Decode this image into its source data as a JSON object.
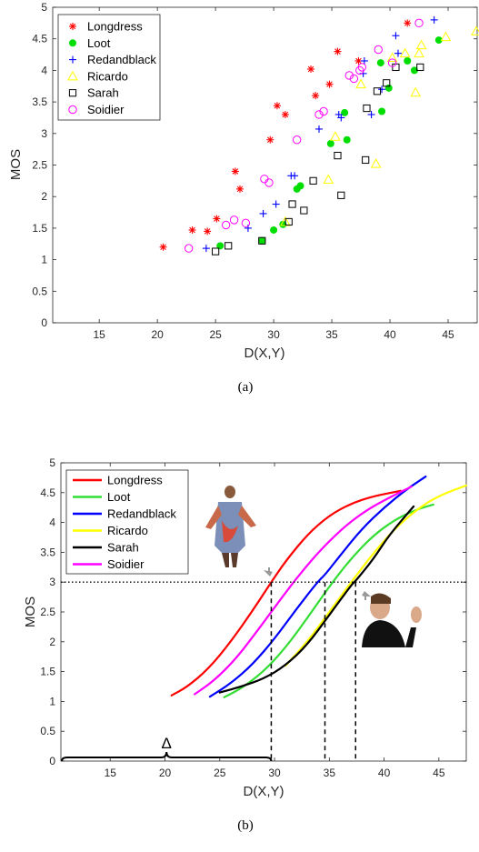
{
  "chart_data": [
    {
      "panel_label": "(a)",
      "type": "scatter",
      "xlabel": "D(X,Y)",
      "ylabel": "MOS",
      "xlim": [
        11,
        47.5
      ],
      "ylim": [
        0,
        5
      ],
      "xticks": [
        15,
        20,
        25,
        30,
        35,
        40,
        45
      ],
      "yticks": [
        0,
        0.5,
        1,
        1.5,
        2,
        2.5,
        3,
        3.5,
        4,
        4.5,
        5
      ],
      "legend": "top-left",
      "series": [
        {
          "name": "Longdress",
          "marker": "asterisk",
          "color": "#ff0000",
          "points": [
            [
              20.5,
              1.2
            ],
            [
              23,
              1.47
            ],
            [
              24.3,
              1.45
            ],
            [
              25.1,
              1.65
            ],
            [
              26.7,
              2.4
            ],
            [
              27.1,
              2.12
            ],
            [
              29.7,
              2.9
            ],
            [
              30.3,
              3.44
            ],
            [
              31,
              3.3
            ],
            [
              33.2,
              4.02
            ],
            [
              33.6,
              3.6
            ],
            [
              34.8,
              3.78
            ],
            [
              35.5,
              4.3
            ],
            [
              37.3,
              4.15
            ],
            [
              41.5,
              4.75
            ]
          ]
        },
        {
          "name": "Loot",
          "marker": "filled-circle",
          "color": "#00dd00",
          "points": [
            [
              25.4,
              1.22
            ],
            [
              29,
              1.3
            ],
            [
              30,
              1.47
            ],
            [
              30.8,
              1.56
            ],
            [
              32,
              2.12
            ],
            [
              32.3,
              2.17
            ],
            [
              34.9,
              2.84
            ],
            [
              36.3,
              2.9
            ],
            [
              36.1,
              3.33
            ],
            [
              39.3,
              3.35
            ],
            [
              39.9,
              3.72
            ],
            [
              39.2,
              4.12
            ],
            [
              41.5,
              4.15
            ],
            [
              42.1,
              4
            ],
            [
              44.2,
              4.48
            ]
          ]
        },
        {
          "name": "Redandblack",
          "marker": "plus",
          "color": "#0000ff",
          "points": [
            [
              24.2,
              1.18
            ],
            [
              27.8,
              1.5
            ],
            [
              29.1,
              1.73
            ],
            [
              30.2,
              1.88
            ],
            [
              31.5,
              2.33
            ],
            [
              31.8,
              2.33
            ],
            [
              33.9,
              3.07
            ],
            [
              35.6,
              3.3
            ],
            [
              35.8,
              3.25
            ],
            [
              37.7,
              3.95
            ],
            [
              37.8,
              4.15
            ],
            [
              38.4,
              3.3
            ],
            [
              39.3,
              3.7
            ],
            [
              40.5,
              4.55
            ],
            [
              40.7,
              4.27
            ],
            [
              43.8,
              4.8
            ]
          ]
        },
        {
          "name": "Ricardo",
          "marker": "triangle",
          "color": "#ffff00",
          "points": [
            [
              31,
              1.6
            ],
            [
              34.7,
              2.27
            ],
            [
              35.3,
              2.95
            ],
            [
              37.5,
              3.78
            ],
            [
              38.8,
              2.52
            ],
            [
              40.2,
              4.2
            ],
            [
              41.3,
              4.27
            ],
            [
              42.2,
              3.65
            ],
            [
              42.5,
              4.27
            ],
            [
              42.7,
              4.4
            ],
            [
              44.8,
              4.53
            ],
            [
              47.5,
              4.62
            ]
          ]
        },
        {
          "name": "Sarah",
          "marker": "square",
          "color": "#000000",
          "points": [
            [
              25,
              1.13
            ],
            [
              26.1,
              1.22
            ],
            [
              29,
              1.3
            ],
            [
              31.3,
              1.6
            ],
            [
              31.6,
              1.88
            ],
            [
              32.6,
              1.78
            ],
            [
              33.4,
              2.25
            ],
            [
              35.5,
              2.65
            ],
            [
              35.8,
              2.02
            ],
            [
              37.9,
              2.58
            ],
            [
              38,
              3.4
            ],
            [
              38.9,
              3.67
            ],
            [
              39.7,
              3.8
            ],
            [
              40.5,
              4.05
            ],
            [
              42.6,
              4.05
            ]
          ]
        },
        {
          "name": "Soidier",
          "marker": "circle",
          "color": "#ff00ff",
          "points": [
            [
              22.7,
              1.18
            ],
            [
              25.9,
              1.55
            ],
            [
              26.6,
              1.63
            ],
            [
              27.6,
              1.58
            ],
            [
              29.2,
              2.28
            ],
            [
              29.6,
              2.22
            ],
            [
              32,
              2.9
            ],
            [
              33.9,
              3.3
            ],
            [
              34.3,
              3.35
            ],
            [
              36.5,
              3.92
            ],
            [
              36.9,
              3.87
            ],
            [
              37.6,
              4.05
            ],
            [
              37.4,
              4
            ],
            [
              39,
              4.33
            ],
            [
              40.2,
              4.12
            ],
            [
              42.5,
              4.75
            ]
          ]
        }
      ]
    },
    {
      "panel_label": "(b)",
      "type": "line",
      "xlabel": "D(X,Y)",
      "ylabel": "MOS",
      "xlim": [
        10.5,
        47.5
      ],
      "ylim": [
        0,
        5
      ],
      "xticks": [
        15,
        20,
        25,
        30,
        35,
        40,
        45
      ],
      "yticks": [
        0,
        0.5,
        1,
        1.5,
        2,
        2.5,
        3,
        3.5,
        4,
        4.5,
        5
      ],
      "legend": "top-left",
      "reference_line_y": 3,
      "dashed_drops_x": [
        29.7,
        34.6,
        37.4
      ],
      "brace": {
        "from_x": 10.5,
        "to_x": 29.7,
        "label": "Δ"
      },
      "series": [
        {
          "name": "Longdress",
          "color": "#ff0000",
          "lw": 2,
          "points": [
            [
              20.6,
              1.1
            ],
            [
              22,
              1.24
            ],
            [
              24,
              1.55
            ],
            [
              26,
              2
            ],
            [
              28,
              2.52
            ],
            [
              29.7,
              3
            ],
            [
              31,
              3.35
            ],
            [
              33,
              3.8
            ],
            [
              35,
              4.12
            ],
            [
              37,
              4.32
            ],
            [
              39,
              4.44
            ],
            [
              41.5,
              4.53
            ]
          ]
        },
        {
          "name": "Loot",
          "color": "#33dd33",
          "lw": 2,
          "points": [
            [
              25.4,
              1.07
            ],
            [
              27,
              1.22
            ],
            [
              29,
              1.5
            ],
            [
              31,
              1.9
            ],
            [
              33,
              2.4
            ],
            [
              35,
              2.93
            ],
            [
              37,
              3.4
            ],
            [
              39,
              3.78
            ],
            [
              41,
              4.05
            ],
            [
              43,
              4.22
            ],
            [
              44.5,
              4.3
            ]
          ]
        },
        {
          "name": "Redandblack",
          "color": "#0000ff",
          "lw": 2,
          "points": [
            [
              24.1,
              1.08
            ],
            [
              26,
              1.3
            ],
            [
              28,
              1.62
            ],
            [
              30,
              2.05
            ],
            [
              32,
              2.55
            ],
            [
              34,
              3.02
            ],
            [
              34.6,
              3.12
            ],
            [
              36,
              3.45
            ],
            [
              38,
              3.9
            ],
            [
              40,
              4.25
            ],
            [
              42,
              4.55
            ],
            [
              43.8,
              4.77
            ]
          ]
        },
        {
          "name": "Ricardo",
          "color": "#ffff00",
          "lw": 2,
          "points": [
            [
              31,
              1.6
            ],
            [
              33,
              2
            ],
            [
              35,
              2.5
            ],
            [
              37,
              3
            ],
            [
              39,
              3.48
            ],
            [
              41,
              3.9
            ],
            [
              43,
              4.22
            ],
            [
              45,
              4.45
            ],
            [
              47.5,
              4.62
            ]
          ]
        },
        {
          "name": "Sarah",
          "color": "#000000",
          "lw": 2,
          "points": [
            [
              25,
              1.15
            ],
            [
              27,
              1.25
            ],
            [
              29,
              1.38
            ],
            [
              31,
              1.6
            ],
            [
              33,
              1.95
            ],
            [
              35,
              2.45
            ],
            [
              37,
              2.95
            ],
            [
              37.4,
              3.02
            ],
            [
              39,
              3.38
            ],
            [
              40.5,
              3.8
            ],
            [
              42.7,
              4.27
            ]
          ]
        },
        {
          "name": "Soidier",
          "color": "#ff00ff",
          "lw": 2,
          "points": [
            [
              22.7,
              1.12
            ],
            [
              24.5,
              1.35
            ],
            [
              26.5,
              1.72
            ],
            [
              28.5,
              2.2
            ],
            [
              30.5,
              2.7
            ],
            [
              32.5,
              3.18
            ],
            [
              34.5,
              3.6
            ],
            [
              36.5,
              3.95
            ],
            [
              38.5,
              4.22
            ],
            [
              40.5,
              4.42
            ],
            [
              42.5,
              4.6
            ]
          ]
        }
      ]
    }
  ],
  "images": [
    {
      "name": "longdress-figure-image",
      "pointer_icon": "arrow-icon"
    },
    {
      "name": "sarah-figure-image",
      "pointer_icon": "arrow-icon"
    }
  ]
}
